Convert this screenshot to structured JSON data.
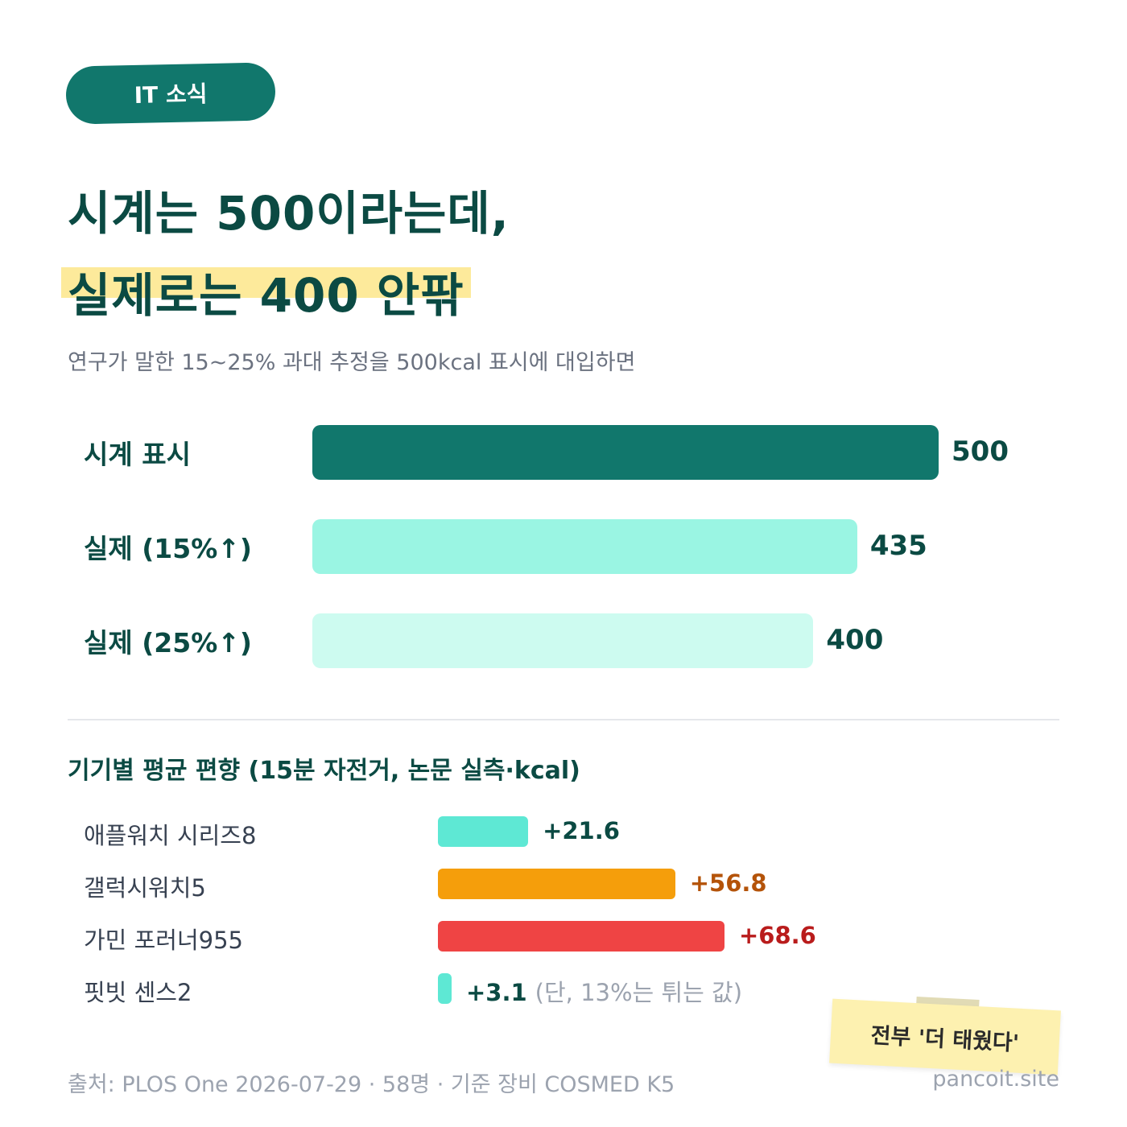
{
  "tag": "IT 소식",
  "headline": {
    "line1": "시계는 500이라는데,",
    "line2": "실제로는 400 안팎"
  },
  "subtitle": "연구가 말한 15~25% 과대 추정을 500kcal 표시에 대입하면",
  "colors": {
    "accent_dark": "#11776c",
    "text_dark": "#0b4a43",
    "highlight": "#fde68a"
  },
  "chart_data": [
    {
      "type": "bar",
      "orientation": "horizontal",
      "categories": [
        "시계 표시",
        "실제 (15%↑)",
        "실제 (25%↑)"
      ],
      "values": [
        500,
        435,
        400
      ],
      "value_labels": [
        "500",
        "435",
        "400"
      ],
      "colors": [
        "#11776c",
        "#9af5e3",
        "#cdfbf0"
      ],
      "xlim": [
        0,
        500
      ]
    },
    {
      "type": "bar",
      "orientation": "horizontal",
      "title": "기기별 평균 편향 (15분 자전거, 논문 실측·kcal)",
      "categories": [
        "애플워치 시리즈8",
        "갤럭시워치5",
        "가민 포러너955",
        "핏빗 센스2"
      ],
      "values": [
        21.6,
        56.8,
        68.6,
        3.1
      ],
      "value_labels": [
        "+21.6",
        "+56.8",
        "+68.6",
        "+3.1"
      ],
      "notes": [
        "",
        "",
        "",
        "(단, 13%는 튀는 값)"
      ],
      "colors": [
        "#5ee8d4",
        "#f59e0b",
        "#ef4444",
        "#5ee8d4"
      ],
      "label_colors": [
        "#0b4a43",
        "#b45309",
        "#b91c1c",
        "#0b4a43"
      ],
      "xlim": [
        0,
        68.6
      ]
    }
  ],
  "sticky_note": "전부 '더 태웠다'",
  "footer": {
    "source": "출처: PLOS One 2026-07-29 · 58명 · 기준 장비 COSMED K5",
    "site": "pancoit.site"
  }
}
